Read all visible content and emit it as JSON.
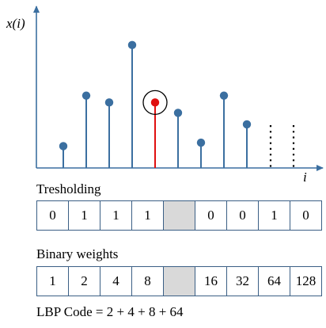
{
  "plot": {
    "y_label_var": "x",
    "y_label_arg": "i",
    "x_label": "i",
    "stem_color": "#3b6fa0",
    "center_color": "#e01010",
    "neighbours": [
      1.9,
      6.3,
      5.7,
      10.7,
      null,
      4.8,
      2.2,
      6.3,
      3.8
    ],
    "center_value": 5.7
  },
  "thresholding": {
    "label": "Tresholding",
    "cells": [
      "0",
      "1",
      "1",
      "1",
      "",
      "0",
      "0",
      "1",
      "0"
    ]
  },
  "weights": {
    "label": "Binary weights",
    "cells": [
      "1",
      "2",
      "4",
      "8",
      "",
      "16",
      "32",
      "64",
      "128"
    ]
  },
  "formula": "LBP Code = 2 + 4 + 8 + 64"
}
